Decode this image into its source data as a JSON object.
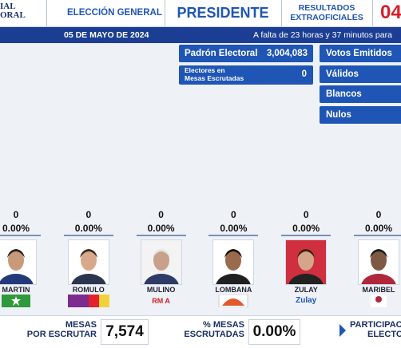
{
  "header": {
    "logo_line1": "IAL",
    "logo_line2": "ORAL",
    "election": "ELECCIÓN GENERAL",
    "office": "PRESIDENTE",
    "results_line1": "RESULTADOS",
    "results_line2": "EXTRAOFICIALES",
    "code": "04"
  },
  "datebar": {
    "date": "05 DE MAYO DE 2024",
    "countdown": "A falta de 23 horas y 37 minutos para"
  },
  "stats": {
    "padron_label": "Padrón Electoral",
    "padron_value": "3,004,083",
    "electores_label_1": "Electores en",
    "electores_label_2": "Mesas Escrutadas",
    "electores_value": "0"
  },
  "totals": [
    "Votos Emitidos",
    "Válidos",
    "Blancos",
    "Nulos"
  ],
  "candidates": [
    {
      "votes": "0",
      "percent": "0.00%",
      "name": "MARTIN",
      "party": ""
    },
    {
      "votes": "0",
      "percent": "0.00%",
      "name": "ROMULO",
      "party": ""
    },
    {
      "votes": "0",
      "percent": "0.00%",
      "name": "MULINO",
      "party": "RM A"
    },
    {
      "votes": "0",
      "percent": "0.00%",
      "name": "LOMBANA",
      "party": ""
    },
    {
      "votes": "0",
      "percent": "0.00%",
      "name": "ZULAY",
      "party": "Zulay"
    },
    {
      "votes": "0",
      "percent": "0.00%",
      "name": "MARIBEL",
      "party": ""
    }
  ],
  "footer": {
    "mesas_label_1": "MESAS",
    "mesas_label_2": "POR ESCRUTAR",
    "mesas_value": "7,574",
    "pct_label_1": "% MESAS",
    "pct_label_2": "ESCRUTADAS",
    "pct_value": "0.00%",
    "part_label_1": "PARTICIPACI",
    "part_label_2": "ELECTOR"
  }
}
